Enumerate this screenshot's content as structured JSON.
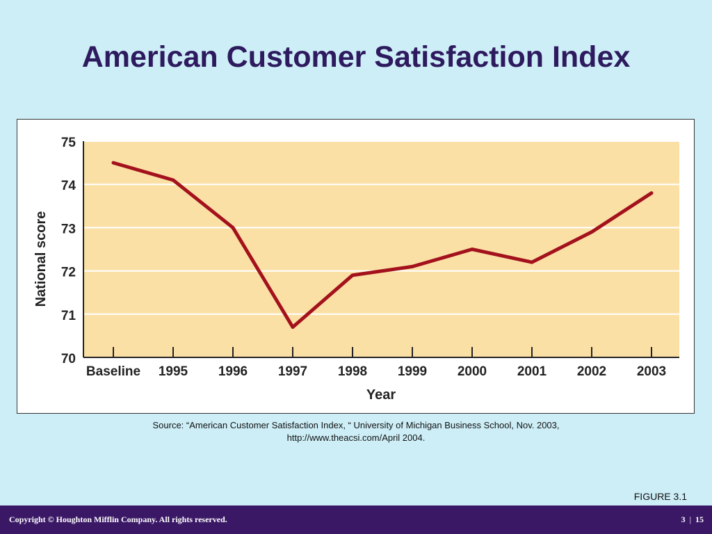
{
  "slide": {
    "title": "American Customer Satisfaction Index",
    "source_line1": "Source: “American Customer Satisfaction Index, “ University of Michigan Business School, Nov. 2003,",
    "source_line2": "http://www.theacsi.com/April 2004.",
    "figure_label": "FIGURE 3.1"
  },
  "footer": {
    "copyright": "Copyright © Houghton Mifflin Company. All rights reserved.",
    "chapter": "3",
    "page": "15"
  },
  "colors": {
    "background": "#cdeef7",
    "plot_background": "#fbe0a6",
    "line": "#a3121c",
    "title": "#2e1a5e",
    "footer": "#3b1866"
  },
  "chart_data": {
    "type": "line",
    "categories": [
      "Baseline",
      "1995",
      "1996",
      "1997",
      "1998",
      "1999",
      "2000",
      "2001",
      "2002",
      "2003"
    ],
    "series": [
      {
        "values": [
          74.5,
          74.1,
          73.0,
          70.7,
          71.9,
          72.1,
          72.5,
          72.2,
          72.9,
          73.8
        ]
      }
    ],
    "title": "",
    "xlabel": "Year",
    "ylabel": "National score",
    "ylim": [
      70,
      75
    ],
    "yticks": [
      70,
      71,
      72,
      73,
      74,
      75
    ],
    "grid": "horizontal"
  }
}
